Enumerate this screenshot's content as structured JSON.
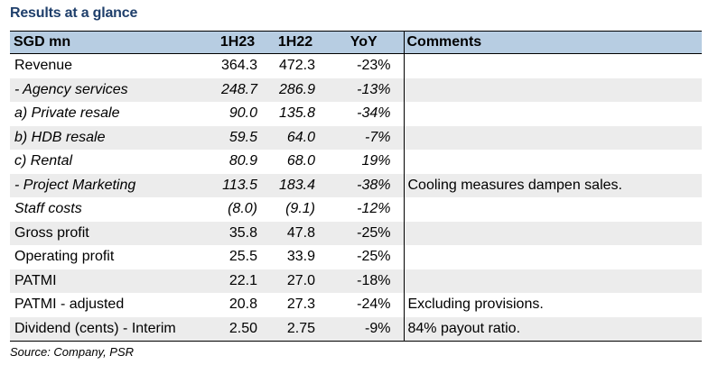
{
  "title": "Results at a glance",
  "table": {
    "headers": [
      "SGD mn",
      "1H23",
      "1H22",
      "YoY",
      "Comments"
    ],
    "rows": [
      {
        "label": "Revenue",
        "h23": "364.3",
        "h22": "472.3",
        "yoy": "-23%",
        "comment": ""
      },
      {
        "label": " - Agency services",
        "h23": "248.7",
        "h22": "286.9",
        "yoy": "-13%",
        "comment": ""
      },
      {
        "label": "a) Private resale",
        "h23": "90.0",
        "h22": "135.8",
        "yoy": "-34%",
        "comment": ""
      },
      {
        "label": "b) HDB resale",
        "h23": "59.5",
        "h22": "64.0",
        "yoy": "-7%",
        "comment": ""
      },
      {
        "label": "c) Rental",
        "h23": "80.9",
        "h22": "68.0",
        "yoy": "19%",
        "comment": ""
      },
      {
        "label": " - Project Marketing",
        "h23": "113.5",
        "h22": "183.4",
        "yoy": "-38%",
        "comment": "Cooling measures dampen sales."
      },
      {
        "label": "Staff costs",
        "h23": "(8.0)",
        "h22": "(9.1)",
        "yoy": "-12%",
        "comment": ""
      },
      {
        "label": "Gross profit",
        "h23": "35.8",
        "h22": "47.8",
        "yoy": "-25%",
        "comment": ""
      },
      {
        "label": "Operating profit",
        "h23": "25.5",
        "h22": "33.9",
        "yoy": "-25%",
        "comment": ""
      },
      {
        "label": "PATMI",
        "h23": "22.1",
        "h22": "27.0",
        "yoy": "-18%",
        "comment": ""
      },
      {
        "label": "PATMI - adjusted",
        "h23": "20.8",
        "h22": "27.3",
        "yoy": "-24%",
        "comment": "Excluding provisions."
      },
      {
        "label": "Dividend (cents) - Interim",
        "h23": "2.50",
        "h22": "2.75",
        "yoy": "-9%",
        "comment": "84% payout ratio."
      }
    ]
  },
  "source": "Source: Company, PSR"
}
